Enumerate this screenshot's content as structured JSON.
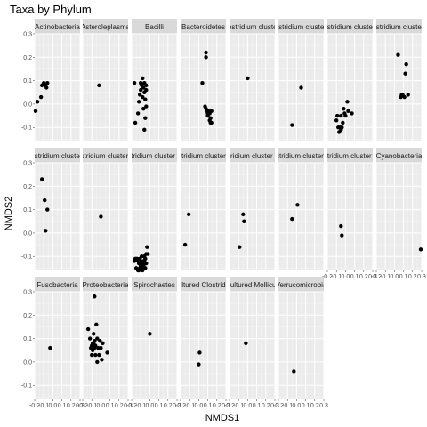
{
  "chart_data": {
    "type": "scatter",
    "title": "Taxa by Phylum",
    "xlabel": "NMDS1",
    "ylabel": "NMDS2",
    "xlim": [
      -0.2,
      0.3
    ],
    "ylim": [
      -0.16,
      0.3
    ],
    "x_ticks": [
      -0.2,
      -0.1,
      0.0,
      0.1,
      0.2,
      0.3
    ],
    "x_tick_labels": [
      "-0.2",
      "-0.1",
      "0.0",
      "0.1",
      "0.2",
      "0.3"
    ],
    "y_ticks": [
      -0.1,
      0.0,
      0.1,
      0.2,
      0.3
    ],
    "y_tick_labels": [
      "-0.1",
      "0.0",
      "0.1",
      "0.2",
      "0.3"
    ],
    "grid": true,
    "panel_background": "#ebebeb",
    "strip_background": "#d9d9d9",
    "point_color": "#000000",
    "panels": [
      {
        "label": "Actinobacteria",
        "points": [
          [
            -0.19,
            -0.03
          ],
          [
            -0.17,
            0.01
          ],
          [
            -0.13,
            0.03
          ],
          [
            -0.12,
            0.08
          ],
          [
            -0.1,
            0.09
          ],
          [
            -0.08,
            0.08
          ],
          [
            -0.07,
            0.07
          ],
          [
            -0.06,
            0.09
          ]
        ]
      },
      {
        "label": "Asteroleplasma",
        "points": [
          [
            -0.02,
            0.08
          ]
        ]
      },
      {
        "label": "Bacilli",
        "points": [
          [
            -0.17,
            0.09
          ],
          [
            -0.16,
            -0.08
          ],
          [
            -0.13,
            -0.04
          ],
          [
            -0.12,
            0.01
          ],
          [
            -0.11,
            0.04
          ],
          [
            -0.1,
            0.06
          ],
          [
            -0.1,
            0.09
          ],
          [
            -0.09,
            0.08
          ],
          [
            -0.08,
            0.11
          ],
          [
            -0.08,
            0.03
          ],
          [
            -0.07,
            -0.02
          ],
          [
            -0.07,
            0.07
          ],
          [
            -0.06,
            0.09
          ],
          [
            -0.06,
            0.05
          ],
          [
            -0.05,
            0.02
          ],
          [
            -0.05,
            -0.06
          ],
          [
            -0.04,
            0.08
          ],
          [
            -0.04,
            -0.01
          ],
          [
            -0.06,
            -0.11
          ],
          [
            -0.04,
            0.06
          ]
        ]
      },
      {
        "label": "Bacteroidetes",
        "points": [
          [
            0.04,
            0.09
          ],
          [
            0.08,
            0.2
          ],
          [
            0.08,
            0.22
          ],
          [
            0.07,
            -0.01
          ],
          [
            0.08,
            -0.02
          ],
          [
            0.09,
            -0.03
          ],
          [
            0.1,
            -0.04
          ],
          [
            0.1,
            -0.05
          ],
          [
            0.11,
            -0.03
          ],
          [
            0.12,
            -0.07
          ],
          [
            0.12,
            -0.04
          ],
          [
            0.13,
            -0.06
          ],
          [
            0.13,
            -0.08
          ],
          [
            0.14,
            -0.08
          ],
          [
            0.14,
            -0.03
          ],
          [
            0.1,
            -0.04
          ]
        ]
      },
      {
        "label": "Clostridium cluster I",
        "points": [
          [
            0.0,
            0.11
          ]
        ]
      },
      {
        "label": "Clostridium cluster III",
        "points": [
          [
            -0.05,
            -0.09
          ],
          [
            0.05,
            0.07
          ]
        ]
      },
      {
        "label": "Clostridium cluster IV",
        "points": [
          [
            -0.1,
            -0.07
          ],
          [
            -0.09,
            -0.05
          ],
          [
            -0.07,
            -0.12
          ],
          [
            -0.06,
            -0.1
          ],
          [
            -0.05,
            -0.05
          ],
          [
            -0.04,
            -0.1
          ],
          [
            -0.03,
            -0.08
          ],
          [
            -0.02,
            -0.02
          ],
          [
            -0.01,
            -0.04
          ],
          [
            0.0,
            -0.05
          ],
          [
            0.02,
            0.01
          ],
          [
            0.03,
            -0.03
          ],
          [
            0.07,
            -0.04
          ],
          [
            -0.08,
            -0.1
          ],
          [
            -0.05,
            -0.11
          ]
        ]
      },
      {
        "label": "Clostridium cluster IX",
        "points": [
          [
            0.04,
            0.21
          ],
          [
            0.07,
            0.03
          ],
          [
            0.09,
            0.04
          ],
          [
            0.11,
            0.03
          ],
          [
            0.12,
            0.13
          ],
          [
            0.13,
            0.17
          ],
          [
            0.15,
            0.04
          ],
          [
            0.08,
            0.04
          ]
        ]
      },
      {
        "label": "Clostridium cluster XI",
        "points": [
          [
            -0.12,
            0.23
          ],
          [
            -0.09,
            0.14
          ],
          [
            -0.08,
            0.01
          ],
          [
            -0.06,
            0.1
          ]
        ]
      },
      {
        "label": "Clostridium cluster XIII",
        "points": [
          [
            0.0,
            0.07
          ]
        ]
      },
      {
        "label": "Clostridium cluster XIVa",
        "points": [
          [
            -0.17,
            -0.12
          ],
          [
            -0.16,
            -0.11
          ],
          [
            -0.15,
            -0.15
          ],
          [
            -0.14,
            -0.11
          ],
          [
            -0.13,
            -0.16
          ],
          [
            -0.12,
            -0.13
          ],
          [
            -0.12,
            -0.16
          ],
          [
            -0.11,
            -0.11
          ],
          [
            -0.1,
            -0.14
          ],
          [
            -0.1,
            -0.12
          ],
          [
            -0.09,
            -0.15
          ],
          [
            -0.09,
            -0.1
          ],
          [
            -0.08,
            -0.13
          ],
          [
            -0.08,
            -0.16
          ],
          [
            -0.07,
            -0.12
          ],
          [
            -0.07,
            -0.14
          ],
          [
            -0.06,
            -0.12
          ],
          [
            -0.06,
            -0.1
          ],
          [
            -0.05,
            -0.11
          ],
          [
            -0.04,
            -0.13
          ],
          [
            -0.04,
            -0.09
          ],
          [
            -0.03,
            -0.06
          ],
          [
            -0.02,
            -0.09
          ],
          [
            -0.05,
            -0.15
          ],
          [
            -0.11,
            -0.15
          ],
          [
            -0.13,
            -0.12
          ]
        ]
      },
      {
        "label": "Clostridium cluster XVI",
        "points": [
          [
            -0.15,
            -0.05
          ],
          [
            -0.11,
            0.08
          ]
        ]
      },
      {
        "label": "Clostridium cluster XVIII",
        "points": [
          [
            -0.09,
            -0.06
          ],
          [
            -0.05,
            0.08
          ],
          [
            -0.04,
            0.05
          ]
        ]
      },
      {
        "label": "Clostridium cluster XXI",
        "points": [
          [
            -0.05,
            0.06
          ],
          [
            0.01,
            0.12
          ]
        ]
      },
      {
        "label": "Clostridium cluster XXII",
        "points": [
          [
            -0.05,
            0.03
          ],
          [
            -0.04,
            -0.01
          ]
        ]
      },
      {
        "label": "Cyanobacteria",
        "points": [
          [
            0.29,
            -0.07
          ]
        ]
      },
      {
        "label": "Fusobacteria",
        "points": [
          [
            -0.03,
            0.06
          ]
        ]
      },
      {
        "label": "Proteobacteria",
        "points": [
          [
            -0.14,
            0.14
          ],
          [
            -0.12,
            0.1
          ],
          [
            -0.11,
            0.06
          ],
          [
            -0.1,
            0.07
          ],
          [
            -0.1,
            0.03
          ],
          [
            -0.09,
            0.08
          ],
          [
            -0.09,
            0.05
          ],
          [
            -0.08,
            0.12
          ],
          [
            -0.08,
            0.08
          ],
          [
            -0.07,
            0.09
          ],
          [
            -0.07,
            0.06
          ],
          [
            -0.07,
            0.28
          ],
          [
            -0.06,
            0.07
          ],
          [
            -0.06,
            0.03
          ],
          [
            -0.05,
            0.16
          ],
          [
            -0.04,
            0.0
          ],
          [
            -0.04,
            0.1
          ],
          [
            -0.03,
            0.06
          ],
          [
            -0.02,
            0.03
          ],
          [
            -0.01,
            0.09
          ],
          [
            0.0,
            0.06
          ],
          [
            0.01,
            0.01
          ],
          [
            0.02,
            0.08
          ],
          [
            0.07,
            0.04
          ]
        ]
      },
      {
        "label": "Spirochaetes",
        "points": [
          [
            0.0,
            0.12
          ]
        ]
      },
      {
        "label": "uncultured Clostridiales",
        "points": [
          [
            0.01,
            0.04
          ],
          [
            0.0,
            -0.01
          ]
        ]
      },
      {
        "label": "uncultured Mollicutes",
        "points": [
          [
            -0.02,
            0.08
          ]
        ]
      },
      {
        "label": "Verrucomicrobia",
        "points": [
          [
            -0.03,
            -0.04
          ]
        ]
      }
    ]
  }
}
